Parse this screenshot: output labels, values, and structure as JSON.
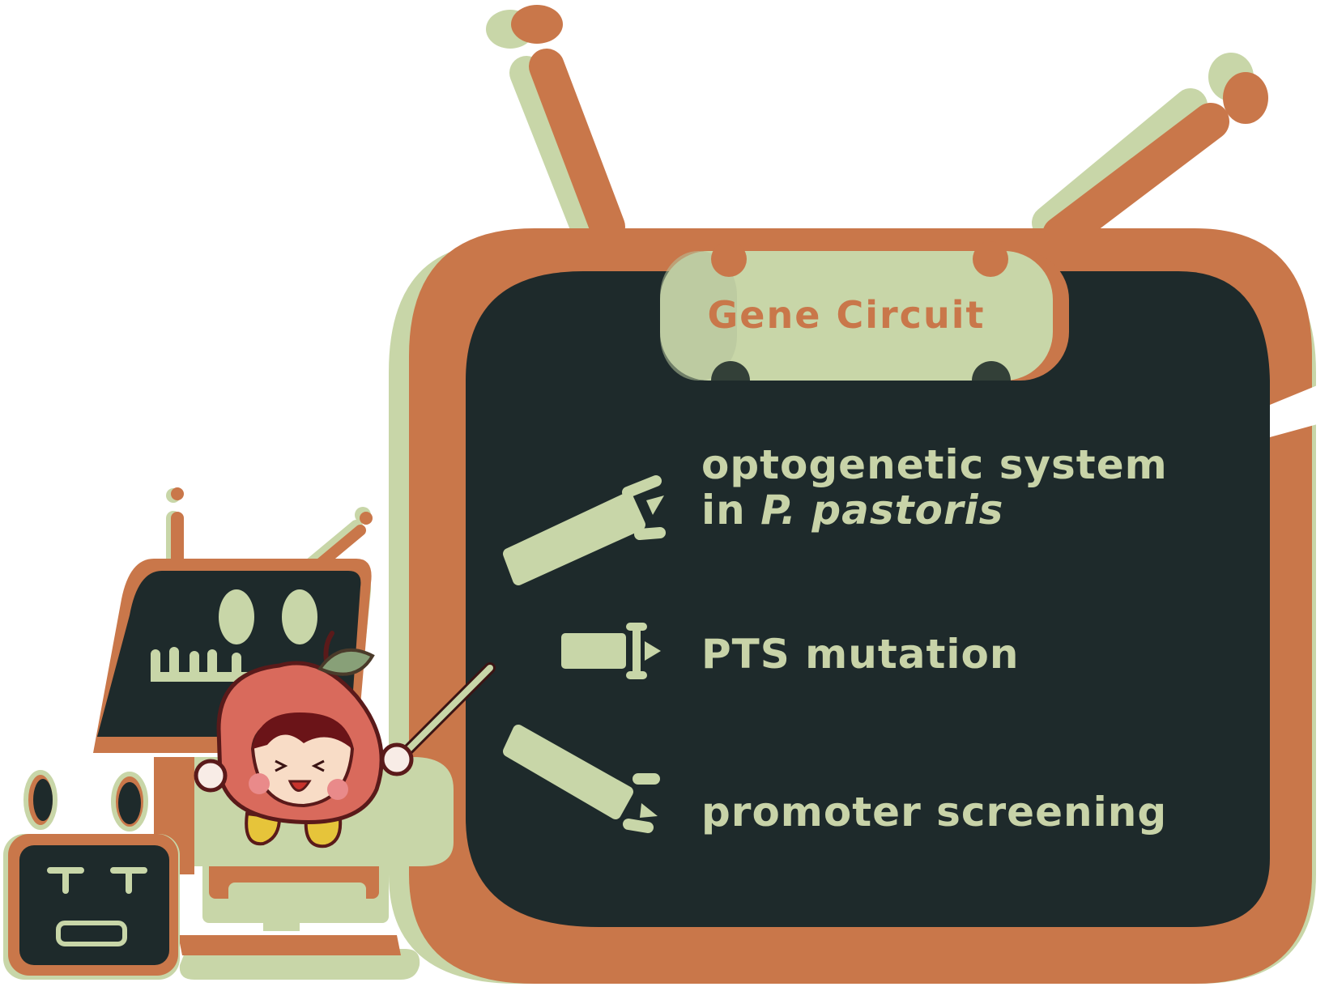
{
  "title": "Gene Circuit",
  "items": [
    {
      "line1": "optogenetic system",
      "line2_prefix": "in ",
      "line2_italic": "P. pastoris"
    },
    {
      "text": "PTS mutation"
    },
    {
      "text": "promoter screening"
    }
  ],
  "colors": {
    "orange": "#c9774a",
    "sage": "#c8d6a8",
    "board": "#1e2a2b",
    "text": "#c8d3a8",
    "title_text": "#c9774a",
    "character_face": "#d96a5c"
  },
  "icons": [
    "dna-segment-icon-1",
    "dna-segment-icon-2",
    "dna-segment-icon-3",
    "robot-tv-character",
    "peach-mascot",
    "small-robot-character"
  ]
}
